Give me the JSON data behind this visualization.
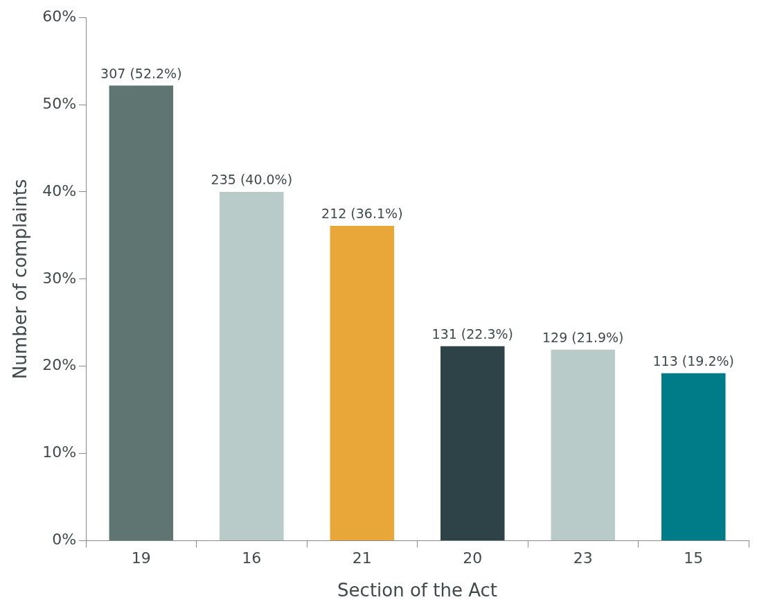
{
  "chart_data": {
    "type": "bar",
    "xlabel": "Section of the Act",
    "ylabel": "Number of complaints",
    "categories": [
      "19",
      "16",
      "21",
      "20",
      "23",
      "15"
    ],
    "values": [
      52.2,
      40.0,
      36.1,
      22.3,
      21.9,
      19.2
    ],
    "colors": [
      "#5e7571",
      "#b8cbc9",
      "#e8a738",
      "#2e4347",
      "#b8cbc9",
      "#007c88"
    ],
    "value_labels": [
      "307 (52.2%)",
      "235 (40.0%)",
      "212 (36.1%)",
      "131 (22.3%)",
      "129 (21.9%)",
      "113 (19.2%)"
    ],
    "ylim": [
      0,
      60
    ],
    "yticks": [
      {
        "value": 0,
        "label": "0%"
      },
      {
        "value": 10,
        "label": "10%"
      },
      {
        "value": 20,
        "label": "20%"
      },
      {
        "value": 30,
        "label": "30%"
      },
      {
        "value": 40,
        "label": "40%"
      },
      {
        "value": 50,
        "label": "50%"
      },
      {
        "value": 60,
        "label": "60%"
      }
    ],
    "grid": false,
    "legend": false
  }
}
